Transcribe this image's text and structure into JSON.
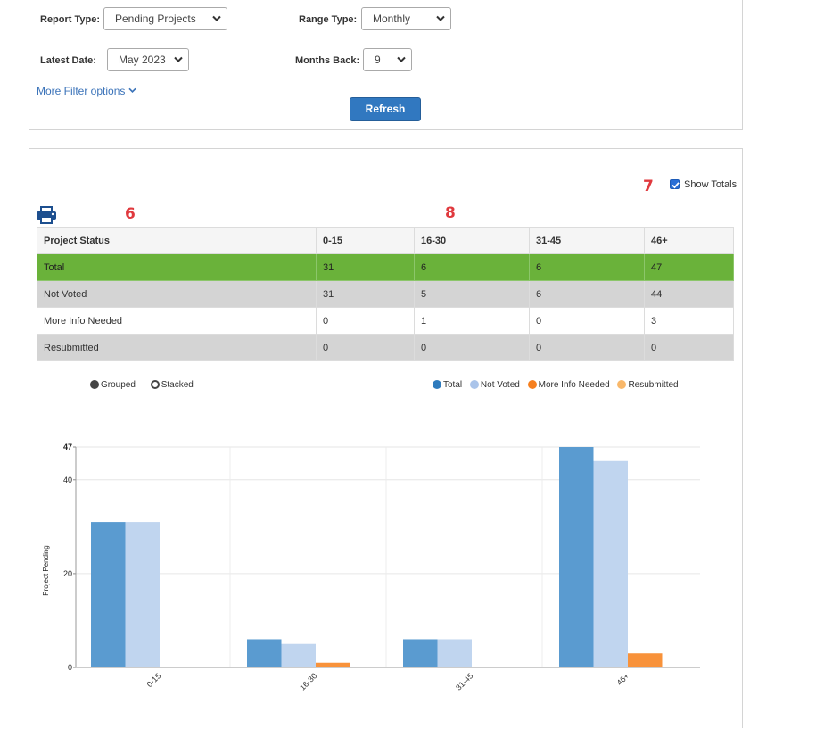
{
  "filters": {
    "report_type": {
      "label": "Report Type:",
      "value": "Pending Projects"
    },
    "range_type": {
      "label": "Range Type:",
      "value": "Monthly"
    },
    "latest_date": {
      "label": "Latest Date:",
      "value": "May 2023"
    },
    "months_back": {
      "label": "Months Back:",
      "value": "9"
    },
    "more_filter_label": "More Filter options",
    "refresh_label": "Refresh"
  },
  "report": {
    "annotations": {
      "a6": "6",
      "a7": "7",
      "a8": "8"
    },
    "show_totals": {
      "label": "Show Totals",
      "checked": true
    },
    "table": {
      "headers": [
        "Project Status",
        "0-15",
        "16-30",
        "31-45",
        "46+"
      ],
      "rows": [
        {
          "status": "Total",
          "values": [
            "31",
            "6",
            "6",
            "47"
          ]
        },
        {
          "status": "Not Voted",
          "values": [
            "31",
            "5",
            "6",
            "44"
          ]
        },
        {
          "status": "More Info Needed",
          "values": [
            "0",
            "1",
            "0",
            "3"
          ]
        },
        {
          "status": "Resubmitted",
          "values": [
            "0",
            "0",
            "0",
            "0"
          ]
        }
      ]
    },
    "mode_toggle": {
      "grouped": "Grouped",
      "stacked": "Stacked",
      "selected": "Grouped"
    }
  },
  "colors": {
    "total": "#5a9bd0",
    "not_voted": "#c0d5ef",
    "more_info": "#f8923a",
    "resubmitted": "#f9c07a",
    "accent_green": "#6ab23a",
    "refresh_blue": "#3178c0"
  },
  "chart_data": {
    "type": "bar",
    "categories": [
      "0-15",
      "16-30",
      "31-45",
      "46+"
    ],
    "series": [
      {
        "name": "Total",
        "values": [
          31,
          6,
          6,
          47
        ]
      },
      {
        "name": "Not Voted",
        "values": [
          31,
          5,
          6,
          44
        ]
      },
      {
        "name": "More Info Needed",
        "values": [
          0,
          1,
          0,
          3
        ]
      },
      {
        "name": "Resubmitted",
        "values": [
          0,
          0,
          0,
          0
        ]
      }
    ],
    "ylabel": "Project Pending",
    "ylim": [
      0,
      47
    ],
    "yticks": [
      0,
      20,
      40,
      47
    ],
    "grid": true,
    "legend": "top-right"
  }
}
